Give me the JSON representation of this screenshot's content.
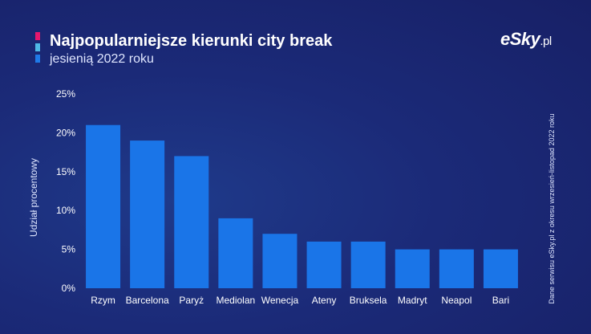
{
  "header": {
    "title": "Najpopularniejsze kierunki city break",
    "subtitle": "jesienią 2022 roku",
    "accent_colors": [
      "#e6176d",
      "#4fb8e6",
      "#1f7ae8"
    ]
  },
  "logo": {
    "main": "eSky",
    "suffix": ".pl"
  },
  "source_note": "Dane serwisu eSky.pl z okresu wrzesień-listopad 2022 roku",
  "colors": {
    "bar": "#1a75e8",
    "background": "#1b2a78"
  },
  "chart_data": {
    "type": "bar",
    "title": "Najpopularniejsze kierunki city break",
    "subtitle": "jesienią 2022 roku",
    "xlabel": "",
    "ylabel": "Udział procentowy",
    "categories": [
      "Rzym",
      "Barcelona",
      "Paryż",
      "Mediolan",
      "Wenecja",
      "Ateny",
      "Bruksela",
      "Madryt",
      "Neapol",
      "Bari"
    ],
    "values": [
      21,
      19,
      17,
      9,
      7,
      6,
      6,
      5,
      5,
      5
    ],
    "ylim": [
      0,
      25
    ],
    "yticks": [
      0,
      5,
      10,
      15,
      20,
      25
    ],
    "ytick_labels": [
      "0%",
      "5%",
      "10%",
      "15%",
      "20%",
      "25%"
    ],
    "grid": false,
    "legend": "none"
  }
}
